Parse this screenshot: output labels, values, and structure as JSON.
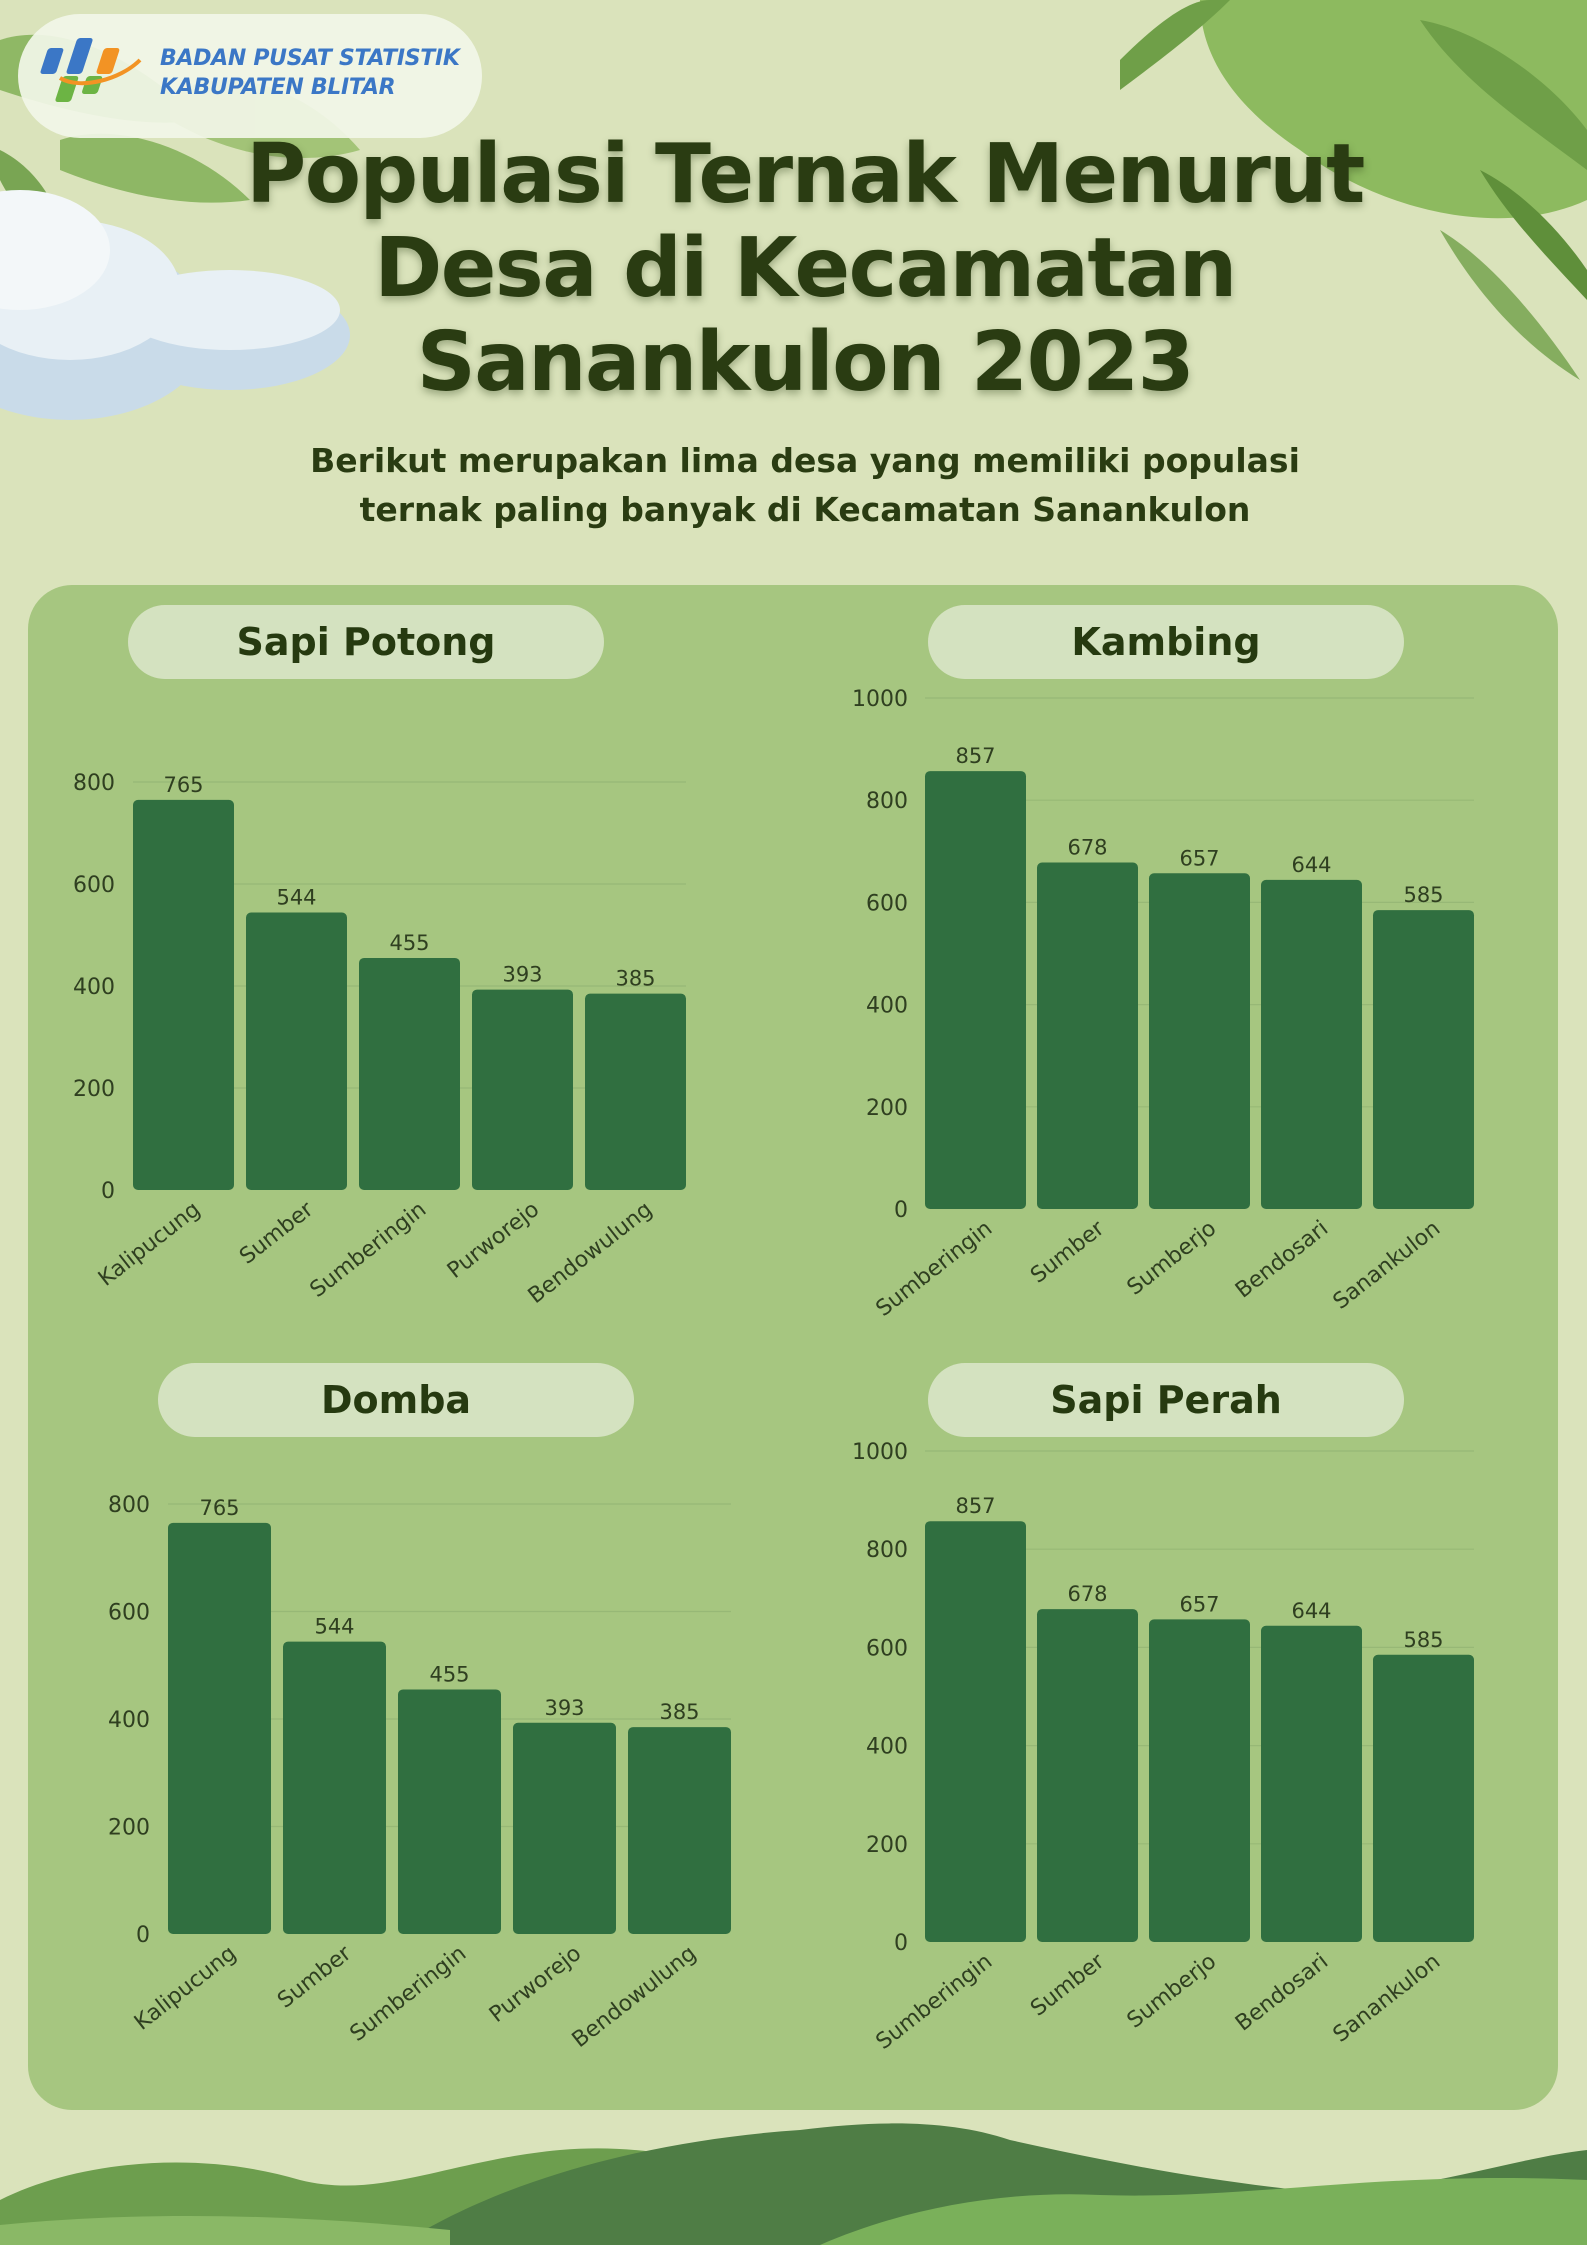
{
  "logo": {
    "line1": "BADAN PUSAT STATISTIK",
    "line2": "KABUPATEN BLITAR",
    "colors": [
      "#3b77c6",
      "#6cb444",
      "#f29324"
    ]
  },
  "header": {
    "title_lines": [
      "Populasi Ternak Menurut",
      "Desa di Kecamatan",
      "Sanankulon 2023"
    ],
    "subtitle_lines": [
      "Berikut merupakan lima desa yang memiliki populasi",
      "ternak paling banyak di Kecamatan Sanankulon"
    ]
  },
  "colors": {
    "background": "#dae3bb",
    "panel": "#a6c680",
    "bar": "#306f40",
    "title": "#2a3c12"
  },
  "chart_data": [
    {
      "type": "bar",
      "title": "Sapi Potong",
      "categories": [
        "Kalipucung",
        "Sumber",
        "Sumberingin",
        "Purworejo",
        "Bendowulung"
      ],
      "values": [
        765,
        544,
        455,
        393,
        385
      ],
      "yticks": [
        "0",
        "200",
        "400",
        "600",
        "800"
      ],
      "ylim": [
        0,
        800
      ],
      "grid": true
    },
    {
      "type": "bar",
      "title": "Kambing",
      "categories": [
        "Sumberingin",
        "Sumber",
        "Sumberjo",
        "Bendosari",
        "Sanankulon"
      ],
      "values": [
        857,
        678,
        657,
        644,
        585
      ],
      "yticks": [
        "0",
        "200",
        "400",
        "600",
        "800",
        "1000"
      ],
      "ylim": [
        0,
        1000
      ],
      "grid": true
    },
    {
      "type": "bar",
      "title": "Domba",
      "categories": [
        "Kalipucung",
        "Sumber",
        "Sumberingin",
        "Purworejo",
        "Bendowulung"
      ],
      "values": [
        765,
        544,
        455,
        393,
        385
      ],
      "yticks": [
        "0",
        "200",
        "400",
        "600",
        "800"
      ],
      "ylim": [
        0,
        800
      ],
      "grid": true
    },
    {
      "type": "bar",
      "title": "Sapi Perah",
      "categories": [
        "Sumberingin",
        "Sumber",
        "Sumberjo",
        "Bendosari",
        "Sanankulon"
      ],
      "values": [
        857,
        678,
        657,
        644,
        585
      ],
      "yticks": [
        "0",
        "200",
        "400",
        "600",
        "800",
        "1000"
      ],
      "ylim": [
        0,
        1000
      ],
      "grid": true
    }
  ]
}
